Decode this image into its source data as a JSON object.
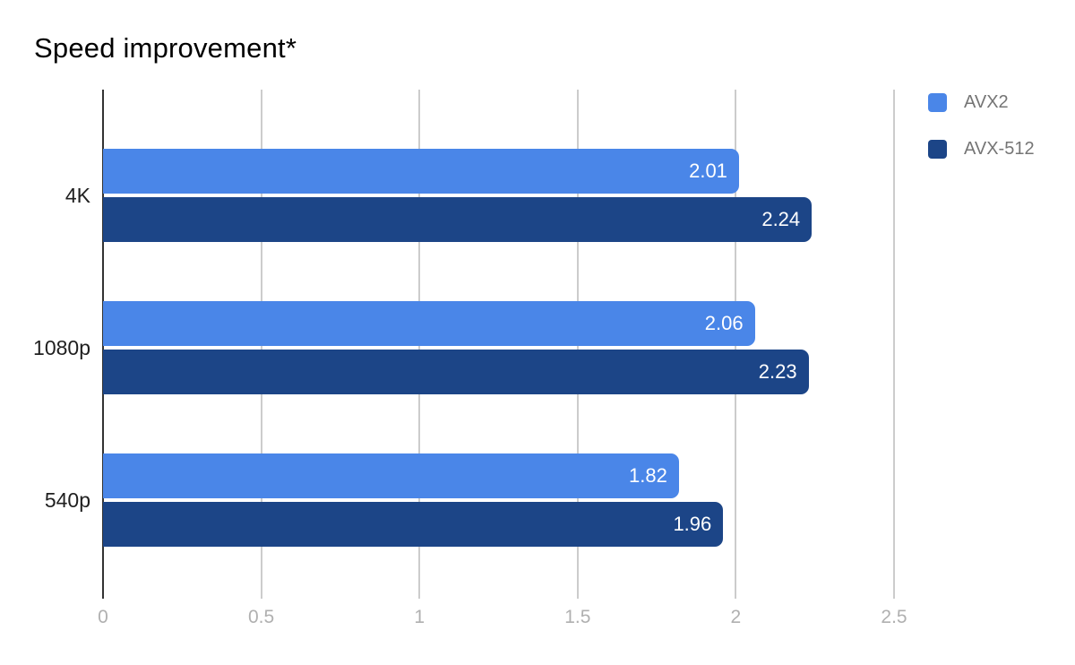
{
  "page": {
    "background": "#ffffff"
  },
  "chart_data": {
    "type": "bar",
    "orientation": "horizontal",
    "title": "Speed improvement*",
    "categories": [
      "4K",
      "1080p",
      "540p"
    ],
    "series": [
      {
        "name": "AVX2",
        "color": "#4a86e8",
        "values": [
          2.01,
          2.06,
          1.82
        ],
        "labels": [
          "2.01",
          "2.06",
          "1.82"
        ]
      },
      {
        "name": "AVX-512",
        "color": "#1c4587",
        "values": [
          2.24,
          2.23,
          1.96
        ],
        "labels": [
          "2.24",
          "2.23",
          "1.96"
        ]
      }
    ],
    "xlabel": "",
    "ylabel": "",
    "xlim": [
      0,
      2.5
    ],
    "xticks": [
      {
        "value": 0,
        "label": "0"
      },
      {
        "value": 0.5,
        "label": "0.5"
      },
      {
        "value": 1,
        "label": "1"
      },
      {
        "value": 1.5,
        "label": "1.5"
      },
      {
        "value": 2,
        "label": "2"
      },
      {
        "value": 2.5,
        "label": "2.5"
      }
    ],
    "grid": true,
    "legend_position": "top-right",
    "value_labels": "inside-end",
    "colors": {
      "grid": "#cccccc",
      "zero_axis": "#333333",
      "tick_label": "#b0b0b0",
      "category_label": "#1f1f1f",
      "value_label": "#ffffff",
      "legend_label": "#757575",
      "title": "#000000"
    }
  }
}
